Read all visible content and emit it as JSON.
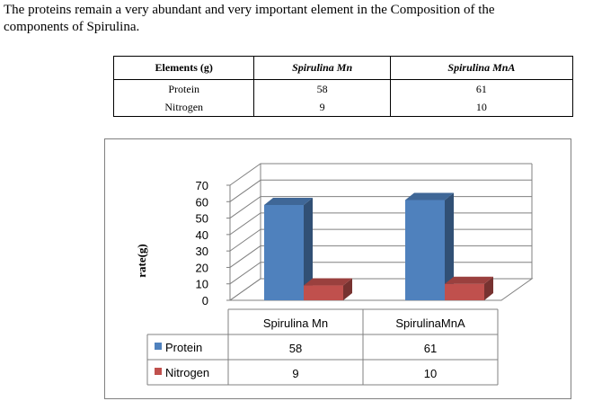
{
  "intro": {
    "line1": "The proteins remain a very abundant and very important element in the Composition of the",
    "line2": "components of Spirulina."
  },
  "table": {
    "headers": [
      "Elements (g)",
      "Spirulina Mn",
      "Spirulina MnA"
    ],
    "rows": [
      {
        "element": "Protein",
        "mn": "58",
        "mna": "61"
      },
      {
        "element": "Nitrogen",
        "mn": "9",
        "mna": "10"
      }
    ]
  },
  "chart_data": {
    "type": "bar",
    "categories": [
      "Spirulina Mn",
      "SpirulinaMnA"
    ],
    "series": [
      {
        "name": "Protein",
        "values": [
          58,
          61
        ],
        "color": "#4f81bd"
      },
      {
        "name": "Nitrogen",
        "values": [
          9,
          10
        ],
        "color": "#c0504d"
      }
    ],
    "ylabel": "rate(g)",
    "ylim": [
      0,
      70
    ],
    "yticks": [
      "0",
      "10",
      "20",
      "30",
      "40",
      "50",
      "60",
      "70"
    ],
    "grid": true,
    "legend": "data-table-bottom",
    "three_d": true
  }
}
